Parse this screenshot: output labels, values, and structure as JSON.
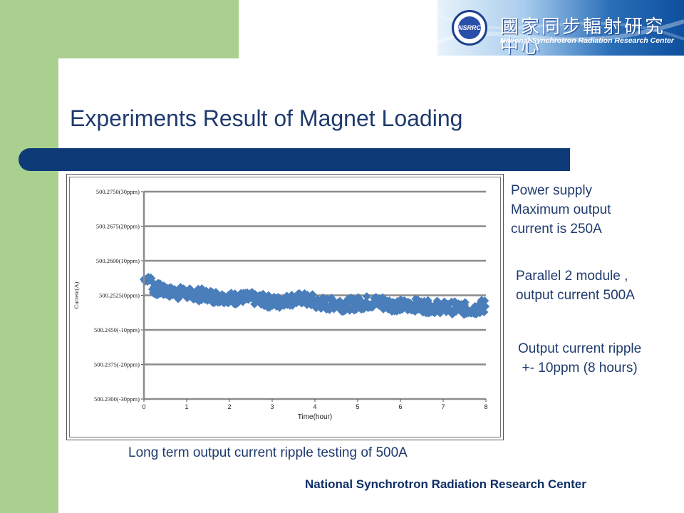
{
  "slide": {
    "title": "Experiments Result of Magnet Loading",
    "caption": "Long term output current ripple testing of 500A",
    "footer": "National Synchrotron Radiation Research Center",
    "notes": {
      "line1a": "Power supply",
      "line1b": "Maximum output",
      "line1c": "current is 250A",
      "line2a": "Parallel 2 module ,",
      "line2b": "output current 500A",
      "line3a": "Output current ripple",
      "line3b": "+- 10ppm (8 hours)"
    }
  },
  "logo": {
    "seal_text": "NSRRC",
    "chinese_name": "國家同步輻射研究中心",
    "english_name": "National Synchrotron Radiation Research Center"
  },
  "colors": {
    "accent_green": "#a9d08e",
    "title_navy": "#1f3a6e",
    "bar_navy": "#0e3a78",
    "series_blue": "#4a7ebb"
  },
  "chart_data": {
    "type": "scatter",
    "xlabel": "Time(hour)",
    "ylabel": "Current(A)",
    "xlim": [
      0,
      8
    ],
    "ylim": [
      500.23,
      500.275
    ],
    "x_ticks": [
      0,
      1,
      2,
      3,
      4,
      5,
      6,
      7,
      8
    ],
    "x_tick_labels": [
      "0",
      "1",
      "2",
      "3",
      "4",
      "5",
      "6",
      "7",
      "8"
    ],
    "y_ticks": [
      500.23,
      500.2375,
      500.245,
      500.2525,
      500.26,
      500.2675,
      500.275
    ],
    "y_tick_labels": [
      "500.2300(-30ppm)",
      "500.2375(-20ppm)",
      "500.2450(-10ppm)",
      "500.2525(0ppm)",
      "500.2600(10ppm)",
      "500.2675(20ppm)",
      "500.2750(30ppm)"
    ],
    "grid": "horizontal",
    "series": [
      {
        "x": [
          0.0,
          0.2,
          0.4,
          0.6,
          0.8,
          1.0,
          1.2,
          1.4,
          1.6,
          1.8,
          2.0,
          2.2,
          2.4,
          2.6,
          2.8,
          3.0,
          3.2,
          3.4,
          3.6,
          3.8,
          4.0,
          4.2,
          4.4,
          4.6,
          4.8,
          5.0,
          5.2,
          5.4,
          5.6,
          5.8,
          6.0,
          6.2,
          6.4,
          6.6,
          6.8,
          7.0,
          7.2,
          7.4,
          7.6,
          7.8
        ],
        "y": [
          500.256,
          500.2538,
          500.2534,
          500.2532,
          500.253,
          500.2528,
          500.2526,
          500.2525,
          500.2522,
          500.252,
          500.2518,
          500.252,
          500.2518,
          500.2516,
          500.2512,
          500.251,
          500.2514,
          500.2516,
          500.2518,
          500.2514,
          500.2508,
          500.2506,
          500.2508,
          500.2504,
          500.2506,
          500.2508,
          500.251,
          500.251,
          500.2506,
          500.2504,
          500.2502,
          500.2504,
          500.2502,
          500.25,
          500.25,
          500.2498,
          500.2498,
          500.2496,
          500.2496,
          500.25
        ],
        "spread": [
          0.0006,
          0.0014,
          0.0012,
          0.0012,
          0.0014,
          0.0012,
          0.0014,
          0.0012,
          0.0014,
          0.0012,
          0.0014,
          0.0012,
          0.0014,
          0.0012,
          0.0014,
          0.0014,
          0.0012,
          0.0014,
          0.0012,
          0.0014,
          0.0014,
          0.0014,
          0.0014,
          0.0014,
          0.0014,
          0.0014,
          0.0014,
          0.0014,
          0.0014,
          0.0014,
          0.0014,
          0.0014,
          0.0014,
          0.0014,
          0.0014,
          0.0014,
          0.0014,
          0.0014,
          0.0014,
          0.0016
        ]
      }
    ]
  }
}
